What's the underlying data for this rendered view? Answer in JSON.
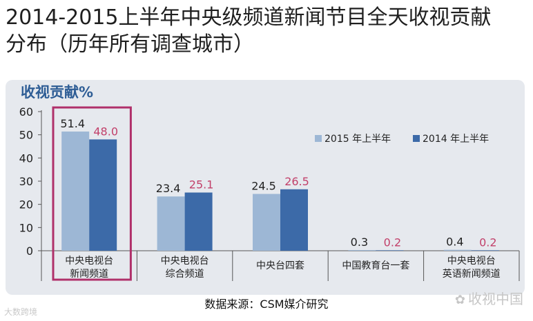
{
  "header": {
    "title_line1": "2014-2015上半年中央级频道新闻节目全天收视贡献",
    "title_line2": "分布（历年所有调查城市）"
  },
  "chart_data": {
    "type": "bar",
    "ylabel": "收视贡献%",
    "ylim": [
      0,
      60
    ],
    "yticks": [
      0,
      10,
      20,
      30,
      40,
      50,
      60
    ],
    "categories": [
      [
        "中央电视台",
        "新闻频道"
      ],
      [
        "中央电视台",
        "综合频道"
      ],
      [
        "中央台四套"
      ],
      [
        "中国教育台一套"
      ],
      [
        "中央电视台",
        "英语新闻频道"
      ]
    ],
    "series": [
      {
        "name": "2015 年上半年",
        "values": [
          51.4,
          23.4,
          24.5,
          0.3,
          0.4
        ],
        "color": "#9db7d5",
        "label_color": "#222222"
      },
      {
        "name": "2014 年上半年",
        "values": [
          48.0,
          25.1,
          26.5,
          0.2,
          0.2
        ],
        "color": "#3c6aa8",
        "label_color": "#c2406a"
      }
    ],
    "legend_position": "right",
    "highlight_category_index": 0,
    "highlight_color": "#b0306a",
    "grid": false
  },
  "footer": {
    "source": "数据来源：CSM媒介研究",
    "watermark_left": "大数跨境",
    "watermark_right": "收视中国",
    "watermark_right_icon": "wechat-icon"
  }
}
